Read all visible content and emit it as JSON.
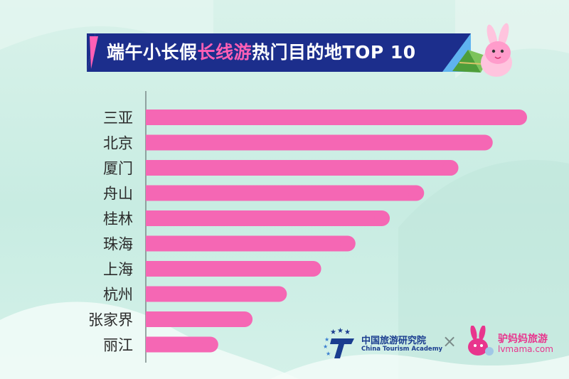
{
  "header": {
    "title_part1": "端午小长假",
    "title_highlight": "长线游",
    "title_part2": "热门目的地TOP 10"
  },
  "chart_data": {
    "type": "bar",
    "orientation": "horizontal",
    "categories": [
      "三亚",
      "北京",
      "厦门",
      "舟山",
      "桂林",
      "珠海",
      "上海",
      "杭州",
      "张家界",
      "丽江"
    ],
    "values": [
      10,
      9.1,
      8.2,
      7.3,
      6.4,
      5.5,
      4.6,
      3.7,
      2.8,
      1.9
    ],
    "xlim": [
      0,
      10
    ],
    "bar_color": "#f567b4",
    "axis_color": "#7a8a88",
    "label_color": "#2b2b2b"
  },
  "footer": {
    "academy_name": "中国旅游研究院",
    "academy_name_en": "China Tourism Academy",
    "separator": "×",
    "partner_name": "驴妈妈旅游",
    "partner_url": "lvmama.com"
  },
  "colors": {
    "banner_dark": "#1c2e8c",
    "banner_light": "#5fb3f0",
    "title_highlight": "#ff5fb5"
  }
}
